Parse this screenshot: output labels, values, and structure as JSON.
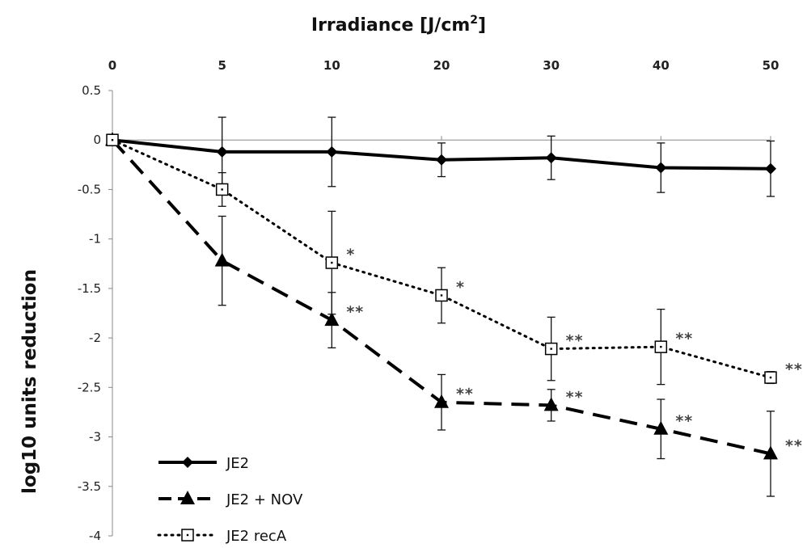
{
  "chart_data": {
    "type": "line",
    "title": "",
    "xlabel": "Irradiance [J/cm",
    "xlabel_sup": "2",
    "xlabel_end": "]",
    "ylabel": "log10 units reduction",
    "x_categories": [
      "0",
      "5",
      "10",
      "20",
      "30",
      "40",
      "50"
    ],
    "y_ticks": [
      "0.5",
      "0",
      "-0.5",
      "-1",
      "-1.5",
      "-2",
      "-2.5",
      "-3",
      "-3.5",
      "-4"
    ],
    "ylim": [
      -4,
      0.5
    ],
    "x_axis_position": "top",
    "grid": false,
    "legend_position": "bottom-left",
    "series": [
      {
        "name": "JE2",
        "line_style": "solid",
        "marker": "diamond",
        "values": [
          0,
          -0.12,
          -0.12,
          -0.2,
          -0.18,
          -0.28,
          -0.29
        ],
        "error": [
          0,
          0.35,
          0.35,
          0.17,
          0.22,
          0.25,
          0.28
        ],
        "significance": [
          "",
          "",
          "",
          "",
          "",
          "",
          ""
        ]
      },
      {
        "name": "JE2 + NOV",
        "line_style": "dashed",
        "marker": "triangle",
        "values": [
          0,
          -1.22,
          -1.82,
          -2.65,
          -2.68,
          -2.92,
          -3.17
        ],
        "error": [
          0,
          0.45,
          0.28,
          0.28,
          0.16,
          0.3,
          0.43
        ],
        "significance": [
          "",
          "",
          "**",
          "**",
          "**",
          "**",
          "**"
        ]
      },
      {
        "name": "JE2 recA",
        "line_style": "dotted",
        "marker": "open-square",
        "values": [
          0,
          -0.5,
          -1.24,
          -1.57,
          -2.11,
          -2.09,
          -2.4
        ],
        "error": [
          0,
          0.17,
          0.52,
          0.28,
          0.32,
          0.38,
          0.06
        ],
        "significance": [
          "",
          "",
          "*",
          "*",
          "**",
          "**",
          "**"
        ]
      }
    ]
  }
}
